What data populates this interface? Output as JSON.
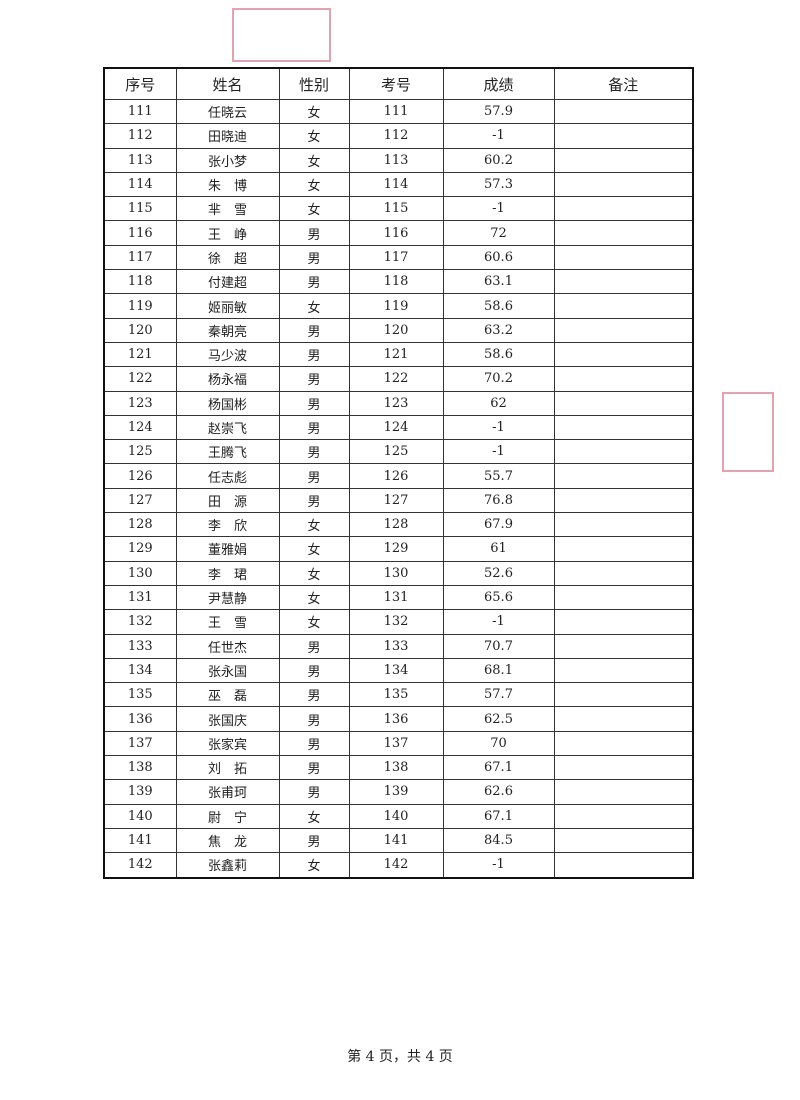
{
  "headers": [
    "序号",
    "姓名",
    "性别",
    "考号",
    "成绩",
    "备注"
  ],
  "rows": [
    [
      "111",
      "任晓云",
      "女",
      "111",
      "57.9",
      ""
    ],
    [
      "112",
      "田晓迪",
      "女",
      "112",
      "-1",
      ""
    ],
    [
      "113",
      "张小梦",
      "女",
      "113",
      "60.2",
      ""
    ],
    [
      "114",
      "朱　博",
      "女",
      "114",
      "57.3",
      ""
    ],
    [
      "115",
      "芈　雪",
      "女",
      "115",
      "-1",
      ""
    ],
    [
      "116",
      "王　峥",
      "男",
      "116",
      "72",
      ""
    ],
    [
      "117",
      "徐　超",
      "男",
      "117",
      "60.6",
      ""
    ],
    [
      "118",
      "付建超",
      "男",
      "118",
      "63.1",
      ""
    ],
    [
      "119",
      "姬丽敏",
      "女",
      "119",
      "58.6",
      ""
    ],
    [
      "120",
      "秦朝亮",
      "男",
      "120",
      "63.2",
      ""
    ],
    [
      "121",
      "马少波",
      "男",
      "121",
      "58.6",
      ""
    ],
    [
      "122",
      "杨永福",
      "男",
      "122",
      "70.2",
      ""
    ],
    [
      "123",
      "杨国彬",
      "男",
      "123",
      "62",
      ""
    ],
    [
      "124",
      "赵崇飞",
      "男",
      "124",
      "-1",
      ""
    ],
    [
      "125",
      "王腾飞",
      "男",
      "125",
      "-1",
      ""
    ],
    [
      "126",
      "任志彪",
      "男",
      "126",
      "55.7",
      ""
    ],
    [
      "127",
      "田　源",
      "男",
      "127",
      "76.8",
      ""
    ],
    [
      "128",
      "李　欣",
      "女",
      "128",
      "67.9",
      ""
    ],
    [
      "129",
      "董雅娟",
      "女",
      "129",
      "61",
      ""
    ],
    [
      "130",
      "李　珺",
      "女",
      "130",
      "52.6",
      ""
    ],
    [
      "131",
      "尹慧静",
      "女",
      "131",
      "65.6",
      ""
    ],
    [
      "132",
      "王　雪",
      "女",
      "132",
      "-1",
      ""
    ],
    [
      "133",
      "任世杰",
      "男",
      "133",
      "70.7",
      ""
    ],
    [
      "134",
      "张永国",
      "男",
      "134",
      "68.1",
      ""
    ],
    [
      "135",
      "巫　磊",
      "男",
      "135",
      "57.7",
      ""
    ],
    [
      "136",
      "张国庆",
      "男",
      "136",
      "62.5",
      ""
    ],
    [
      "137",
      "张家宾",
      "男",
      "137",
      "70",
      ""
    ],
    [
      "138",
      "刘　拓",
      "男",
      "138",
      "67.1",
      ""
    ],
    [
      "139",
      "张甫珂",
      "男",
      "139",
      "62.6",
      ""
    ],
    [
      "140",
      "尉　宁",
      "女",
      "140",
      "67.1",
      ""
    ],
    [
      "141",
      "焦　龙",
      "男",
      "141",
      "84.5",
      ""
    ],
    [
      "142",
      "张鑫莉",
      "女",
      "142",
      "-1",
      ""
    ]
  ],
  "footer": "第 4 页，共 4 页",
  "stamp_color": "#d77a8c"
}
